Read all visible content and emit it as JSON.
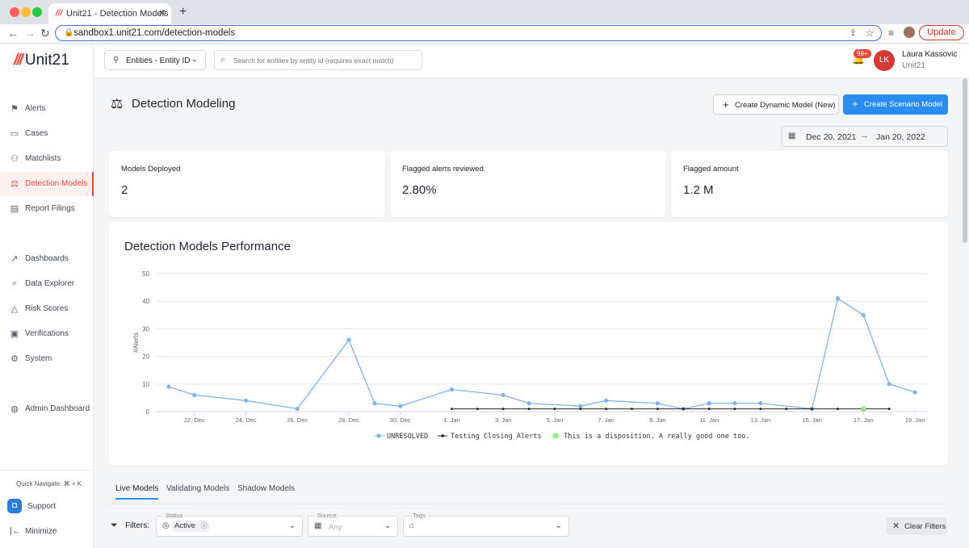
{
  "browser": {
    "tab_title": "Unit21 - Detection Models",
    "url": "sandbox1.unit21.com/detection-models",
    "update_label": "Update"
  },
  "brand": {
    "name": "Unit21"
  },
  "sidebar": {
    "items": [
      {
        "label": "Alerts",
        "icon": "flag-icon"
      },
      {
        "label": "Cases",
        "icon": "briefcase-icon"
      },
      {
        "label": "Matchlists",
        "icon": "user-plus-icon"
      },
      {
        "label": "Detection Models",
        "icon": "scale-icon"
      },
      {
        "label": "Report Filings",
        "icon": "report-icon"
      },
      {
        "label": "Dashboards",
        "icon": "trend-icon"
      },
      {
        "label": "Data Explorer",
        "icon": "data-search-icon"
      },
      {
        "label": "Risk Scores",
        "icon": "warning-icon"
      },
      {
        "label": "Verifications",
        "icon": "id-card-icon"
      },
      {
        "label": "System",
        "icon": "gear-icon"
      },
      {
        "label": "Admin Dashboard",
        "icon": "globe-icon"
      }
    ],
    "quick_navigate": "Quick Navigate: ⌘ + K",
    "support": "Support",
    "minimize": "Minimize"
  },
  "header": {
    "entity_select": "Entities - Entity ID",
    "search_placeholder": "Search for entities by entity id (requires exact match)",
    "notification_count": "99+",
    "user_initials": "LK",
    "user_name": "Laura Kassovic",
    "user_org": "Unit21"
  },
  "page": {
    "title": "Detection Modeling",
    "btn_dynamic": "Create Dynamic Model (New)",
    "btn_scenario": "Create Scenario Model",
    "date_from": "Dec 20, 2021",
    "date_to": "Jan 20, 2022"
  },
  "kpis": [
    {
      "label": "Models Deployed",
      "value": "2"
    },
    {
      "label": "Flagged alerts reviewed",
      "value": "2.80%"
    },
    {
      "label": "Flagged amount",
      "value": "1.2 M"
    }
  ],
  "chart_data": {
    "type": "line",
    "title": "Detection Models Performance",
    "ylabel": "#Alerts",
    "xlabel": "",
    "ylim": [
      0,
      50
    ],
    "yticks": [
      0,
      10,
      20,
      30,
      40,
      50
    ],
    "xticks": [
      "22. Dec",
      "24. Dec",
      "26. Dec",
      "28. Dec",
      "30. Dec",
      "1. Jan",
      "3. Jan",
      "5. Jan",
      "7. Jan",
      "9. Jan",
      "11. Jan",
      "13. Jan",
      "15. Jan",
      "17. Jan",
      "19. Jan"
    ],
    "x_start_day": 20,
    "series": [
      {
        "name": "UNRESOLVED",
        "color": "#7cb5ec",
        "points": [
          [
            21,
            9
          ],
          [
            22,
            6
          ],
          [
            24,
            4
          ],
          [
            26,
            1
          ],
          [
            28,
            26
          ],
          [
            29,
            3
          ],
          [
            30,
            2
          ],
          [
            32,
            8
          ],
          [
            34,
            6
          ],
          [
            35,
            3
          ],
          [
            37,
            2
          ],
          [
            38,
            4
          ],
          [
            40,
            3
          ],
          [
            41,
            1
          ],
          [
            42,
            3
          ],
          [
            43,
            3
          ],
          [
            44,
            3
          ],
          [
            46,
            1
          ],
          [
            47,
            41
          ],
          [
            48,
            35
          ],
          [
            49,
            10
          ],
          [
            50,
            7
          ]
        ]
      },
      {
        "name": "Testing Closing Alerts",
        "color": "#222222",
        "points": [
          [
            32,
            1
          ],
          [
            33,
            1
          ],
          [
            34,
            1
          ],
          [
            35,
            1
          ],
          [
            36,
            1
          ],
          [
            37,
            1
          ],
          [
            38,
            1
          ],
          [
            39,
            1
          ],
          [
            40,
            1
          ],
          [
            41,
            1
          ],
          [
            42,
            1
          ],
          [
            43,
            1
          ],
          [
            44,
            1
          ],
          [
            45,
            1
          ],
          [
            46,
            1
          ],
          [
            47,
            1
          ],
          [
            48,
            1
          ],
          [
            49,
            1
          ]
        ]
      },
      {
        "name": "This is a disposition. A really good one too.",
        "color": "#90ed7d",
        "points": [
          [
            48,
            1
          ]
        ]
      }
    ]
  },
  "tabs": [
    {
      "label": "Live Models"
    },
    {
      "label": "Validating Models"
    },
    {
      "label": "Shadow Models"
    }
  ],
  "filters": {
    "label": "Filters:",
    "status_legend": "Status",
    "status_value": "Active",
    "source_legend": "Source",
    "source_placeholder": "Any",
    "tags_legend": "Tags",
    "clear_label": "Clear Filters"
  }
}
